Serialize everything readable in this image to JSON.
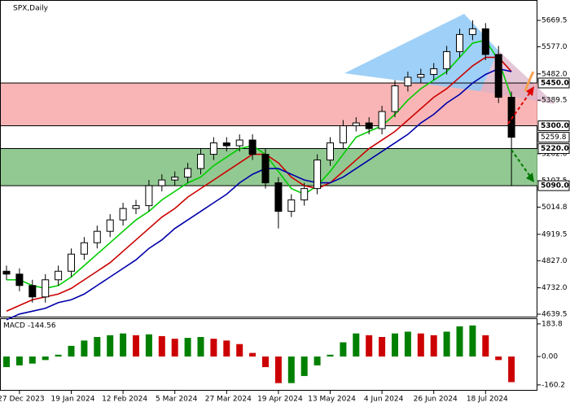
{
  "chart_data": [
    {
      "type": "candlestick",
      "title": "SPX,Daily",
      "categories": [
        null,
        "27 Dec 2023",
        null,
        null,
        null,
        "19 Jan 2024",
        null,
        null,
        null,
        "12 Feb 2024",
        null,
        null,
        null,
        "5 Mar 2024",
        null,
        null,
        null,
        "27 Mar 2024",
        null,
        null,
        null,
        "19 Apr 2024",
        null,
        null,
        null,
        "13 May 2024",
        null,
        null,
        null,
        "4 Jun 2024",
        null,
        null,
        null,
        "26 Jun 2024",
        null,
        null,
        null,
        "18 Jul 2024",
        null,
        null
      ],
      "open": [
        4790,
        4780,
        4740,
        4700,
        4760,
        4790,
        4850,
        4890,
        4930,
        4970,
        5010,
        5020,
        5090,
        5110,
        5120,
        5150,
        5200,
        5240,
        5230,
        5250,
        5200,
        5100,
        5000,
        5040,
        5080,
        5180,
        5240,
        5300,
        5310,
        5290,
        5350,
        5440,
        5470,
        5480,
        5500,
        5560,
        5620,
        5640,
        5550,
        5400
      ],
      "high": [
        4810,
        4800,
        4760,
        4780,
        4810,
        4870,
        4910,
        4950,
        4990,
        5030,
        5040,
        5110,
        5130,
        5140,
        5170,
        5220,
        5260,
        5260,
        5270,
        5270,
        5220,
        5120,
        5060,
        5100,
        5200,
        5260,
        5320,
        5330,
        5330,
        5370,
        5460,
        5490,
        5500,
        5520,
        5580,
        5640,
        5670,
        5660,
        5580,
        5420
      ],
      "low": [
        4760,
        4720,
        4680,
        4680,
        4740,
        4770,
        4830,
        4870,
        4910,
        4950,
        4990,
        5000,
        5070,
        5090,
        5100,
        5130,
        5180,
        5210,
        5210,
        5180,
        5080,
        4940,
        4980,
        5020,
        5060,
        5160,
        5220,
        5280,
        5270,
        5270,
        5330,
        5420,
        5450,
        5460,
        5480,
        5540,
        5600,
        5530,
        5380,
        5090
      ],
      "close": [
        4780,
        4740,
        4700,
        4760,
        4790,
        4850,
        4890,
        4930,
        4970,
        5010,
        5020,
        5090,
        5110,
        5120,
        5150,
        5200,
        5240,
        5230,
        5250,
        5200,
        5100,
        5000,
        5040,
        5080,
        5180,
        5240,
        5300,
        5310,
        5290,
        5350,
        5440,
        5470,
        5480,
        5500,
        5560,
        5620,
        5640,
        5550,
        5400,
        5259.8
      ],
      "series": [
        {
          "color": "#00cc00",
          "values": [
            4760,
            4760,
            4740,
            4730,
            4740,
            4770,
            4810,
            4850,
            4890,
            4930,
            4970,
            5000,
            5040,
            5070,
            5100,
            5120,
            5160,
            5190,
            5220,
            5230,
            5200,
            5140,
            5080,
            5060,
            5090,
            5140,
            5200,
            5260,
            5280,
            5300,
            5340,
            5390,
            5430,
            5460,
            5490,
            5540,
            5590,
            5600,
            5530,
            5400
          ]
        },
        {
          "color": "#cc0000",
          "values": [
            4650,
            4670,
            4690,
            4700,
            4710,
            4730,
            4760,
            4790,
            4820,
            4860,
            4900,
            4940,
            4980,
            5010,
            5050,
            5080,
            5110,
            5140,
            5170,
            5200,
            5200,
            5170,
            5120,
            5090,
            5080,
            5100,
            5140,
            5180,
            5220,
            5250,
            5280,
            5320,
            5360,
            5400,
            5430,
            5470,
            5510,
            5540,
            5540,
            5490
          ]
        },
        {
          "color": "#0000aa",
          "values": [
            4620,
            4640,
            4650,
            4660,
            4680,
            4690,
            4710,
            4740,
            4770,
            4800,
            4830,
            4870,
            4900,
            4940,
            4970,
            5000,
            5030,
            5060,
            5100,
            5130,
            5150,
            5150,
            5130,
            5110,
            5100,
            5100,
            5120,
            5150,
            5180,
            5210,
            5240,
            5270,
            5310,
            5340,
            5380,
            5410,
            5450,
            5480,
            5500,
            5490
          ]
        }
      ],
      "ylim": [
        4628,
        5741
      ],
      "yticks": [
        5669.5,
        {
          "value": 5577,
          "label": "5577.0"
        },
        {
          "value": 5482,
          "label": "5482.0"
        },
        5389.5,
        {
          "value": 5202,
          "label": "5202.0"
        },
        5107.5,
        5014.8,
        4919.5,
        {
          "value": 4827,
          "label": "4827.0"
        },
        {
          "value": 4732,
          "label": "4732.0"
        },
        4639.5
      ],
      "levels": [
        {
          "value": 5450,
          "label": "5450.0"
        },
        {
          "value": 5300,
          "label": "5300.0"
        },
        {
          "value": 5220,
          "label": "5220.0"
        },
        {
          "value": 5090,
          "label": "5090.0"
        }
      ],
      "last_price": 5259.8,
      "zones": [
        {
          "from": 5300,
          "to": 5450,
          "color": "#f8a8a8"
        },
        {
          "from": 5090,
          "to": 5220,
          "color": "#7fbf7f"
        }
      ]
    },
    {
      "type": "bar",
      "title": "MACD -144.56",
      "values": [
        -60,
        -50,
        -40,
        -20,
        10,
        60,
        90,
        110,
        120,
        130,
        120,
        125,
        115,
        100,
        105,
        110,
        100,
        90,
        70,
        20,
        -60,
        -150,
        -150,
        -110,
        -50,
        10,
        80,
        130,
        120,
        110,
        130,
        140,
        130,
        120,
        140,
        170,
        175,
        120,
        -20,
        -144.56
      ],
      "up_color": "#008000",
      "down_color": "#cc0000",
      "ylim": [
        -193,
        211
      ],
      "yticks": [
        183.8,
        {
          "value": 0,
          "label": "0.00"
        },
        -160.2
      ]
    }
  ]
}
